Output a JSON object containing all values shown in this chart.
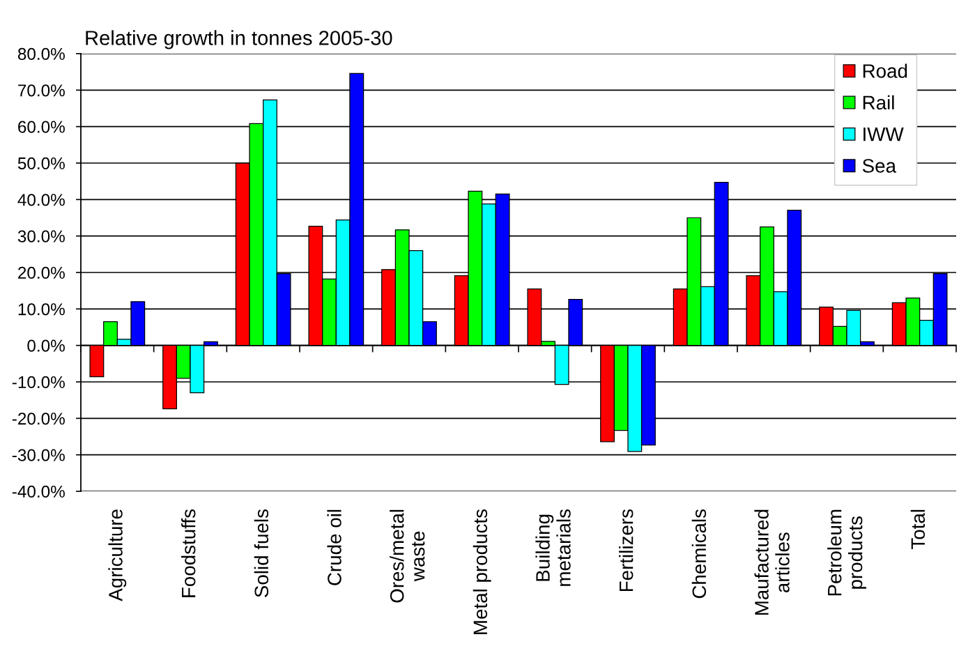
{
  "chart_data": {
    "type": "bar",
    "title": "Relative growth in tonnes 2005-30",
    "categories": [
      "Agriculture",
      "Foodstuffs",
      "Solid fuels",
      "Crude oil",
      "Ores/metal\nwaste",
      "Metal products",
      "Building\nmetarials",
      "Fertilizers",
      "Chemicals",
      "Maufactured\narticles",
      "Petroleum\nproducts",
      "Total"
    ],
    "series": [
      {
        "name": "Road",
        "color": "#ff0000",
        "values": [
          -8.6,
          -17.4,
          50.0,
          32.7,
          20.8,
          19.1,
          15.5,
          -26.4,
          15.5,
          19.1,
          10.5,
          11.7
        ]
      },
      {
        "name": "Rail",
        "color": "#00ff00",
        "values": [
          6.5,
          -9.0,
          60.8,
          18.2,
          31.7,
          42.3,
          1.1,
          -23.3,
          35.0,
          32.5,
          5.2,
          13.0
        ]
      },
      {
        "name": "IWW",
        "color": "#00ffff",
        "values": [
          1.7,
          -13.0,
          67.3,
          34.4,
          26.0,
          38.8,
          -10.7,
          -29.1,
          16.1,
          14.7,
          9.6,
          6.9
        ]
      },
      {
        "name": "Sea",
        "color": "#0000ff",
        "values": [
          12.0,
          1.0,
          19.7,
          74.6,
          6.5,
          41.5,
          12.6,
          -27.3,
          44.7,
          37.1,
          1.0,
          19.7
        ]
      }
    ],
    "ylim": [
      -40,
      80
    ],
    "yticks": [
      {
        "value": -40,
        "label": "-40.0%"
      },
      {
        "value": -30,
        "label": "-30.0%"
      },
      {
        "value": -20,
        "label": "-20.0%"
      },
      {
        "value": -10,
        "label": "-10.0%"
      },
      {
        "value": 0,
        "label": "0.0%"
      },
      {
        "value": 10,
        "label": "10.0%"
      },
      {
        "value": 20,
        "label": "20.0%"
      },
      {
        "value": 30,
        "label": "30.0%"
      },
      {
        "value": 40,
        "label": "40.0%"
      },
      {
        "value": 50,
        "label": "50.0%"
      },
      {
        "value": 60,
        "label": "60.0%"
      },
      {
        "value": 70,
        "label": "70.0%"
      },
      {
        "value": 80,
        "label": "80.0%"
      }
    ],
    "grid": "y",
    "legend": "top right"
  }
}
